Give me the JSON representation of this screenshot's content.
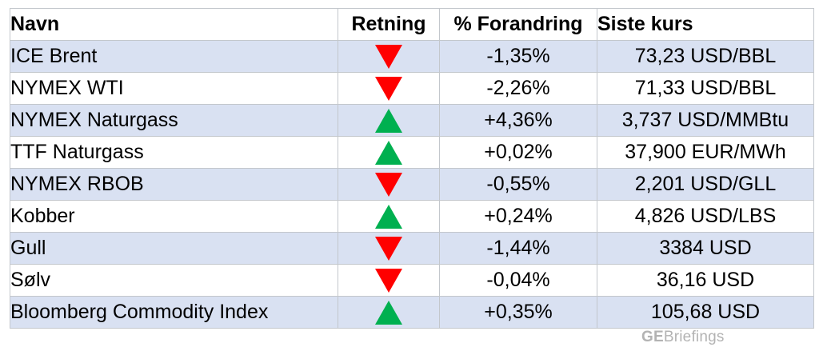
{
  "table": {
    "headers": {
      "name": "Navn",
      "direction": "Retning",
      "change": "% Forandring",
      "last": "Siste kurs"
    },
    "rows": [
      {
        "name": "ICE Brent",
        "direction": "down",
        "change": "-1,35%",
        "last": "73,23 USD/BBL"
      },
      {
        "name": "NYMEX WTI",
        "direction": "down",
        "change": "-2,26%",
        "last": "71,33 USD/BBL"
      },
      {
        "name": "NYMEX Naturgass",
        "direction": "up",
        "change": "+4,36%",
        "last": "3,737 USD/MMBtu"
      },
      {
        "name": "TTF Naturgass",
        "direction": "up",
        "change": "+0,02%",
        "last": "37,900 EUR/MWh"
      },
      {
        "name": "NYMEX RBOB",
        "direction": "down",
        "change": "-0,55%",
        "last": "2,201 USD/GLL"
      },
      {
        "name": "Kobber",
        "direction": "up",
        "change": "+0,24%",
        "last": "4,826 USD/LBS"
      },
      {
        "name": "Gull",
        "direction": "down",
        "change": "-1,44%",
        "last": "3384 USD"
      },
      {
        "name": "Sølv",
        "direction": "down",
        "change": "-0,04%",
        "last": "36,16 USD"
      },
      {
        "name": "Bloomberg Commodity Index",
        "direction": "up",
        "change": "+0,35%",
        "last": "105,68 USD"
      }
    ]
  },
  "colors": {
    "down_arrow": "#ff0000",
    "up_arrow": "#00b050",
    "row_shade": "#d9e1f2"
  },
  "icons": {
    "up": "up-triangle-icon",
    "down": "down-triangle-icon"
  },
  "watermark": {
    "bold_part": "GE",
    "regular_part": "Briefings"
  }
}
